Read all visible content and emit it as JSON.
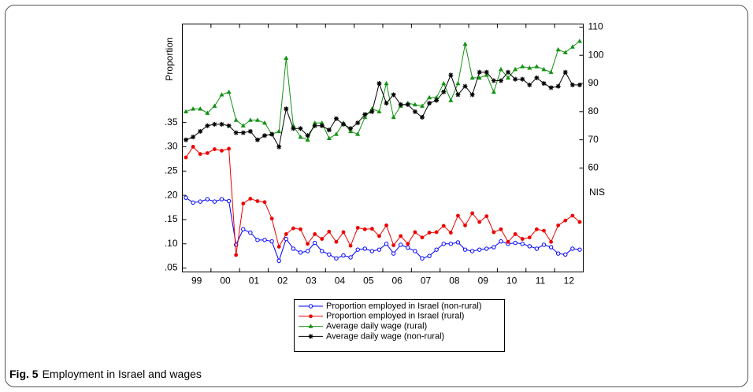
{
  "chart_data": {
    "type": "line",
    "ylabel": "Proportion",
    "y2label": "NIS",
    "caption_label": "Fig. 5",
    "caption": "Employment in Israel and wages",
    "categories": [
      null,
      "99",
      null,
      null,
      null,
      "00",
      null,
      null,
      null,
      "01",
      null,
      null,
      null,
      "02",
      null,
      null,
      null,
      "03",
      null,
      null,
      null,
      "04",
      null,
      null,
      null,
      "05",
      null,
      null,
      null,
      "06",
      null,
      null,
      null,
      "07",
      null,
      null,
      null,
      "08",
      null,
      null,
      null,
      "09",
      null,
      null,
      null,
      "10",
      null,
      null,
      null,
      "11",
      null,
      null,
      null,
      "12",
      null,
      null
    ],
    "ylim": [
      0.042,
      0.553
    ],
    "yticks": [
      {
        "value": 0.05,
        "label": ".05"
      },
      {
        "value": 0.1,
        "label": ".10"
      },
      {
        "value": 0.15,
        "label": ".15"
      },
      {
        "value": 0.2,
        "label": ".20"
      },
      {
        "value": 0.25,
        "label": ".25"
      },
      {
        "value": 0.3,
        "label": ".30"
      },
      {
        "value": 0.35,
        "label": ".35"
      }
    ],
    "y2lim": [
      23.1,
      111.1
    ],
    "y2ticks": [
      60,
      70,
      80,
      90,
      100,
      110
    ],
    "grid": false,
    "series": [
      {
        "name": "Proportion employed in Israel (non-rural)",
        "color": "#0000ff",
        "marker": "open-circle",
        "values": [
          0.195,
          0.185,
          0.187,
          0.192,
          0.187,
          0.192,
          0.188,
          0.098,
          0.13,
          0.123,
          0.108,
          0.108,
          0.105,
          0.065,
          0.11,
          0.09,
          0.082,
          0.085,
          0.102,
          0.085,
          0.078,
          0.07,
          0.076,
          0.072,
          0.088,
          0.09,
          0.085,
          0.088,
          0.1,
          0.08,
          0.098,
          0.092,
          0.085,
          0.07,
          0.075,
          0.088,
          0.1,
          0.1,
          0.103,
          0.088,
          0.085,
          0.088,
          0.09,
          0.093,
          0.105,
          0.1,
          0.102,
          0.1,
          0.095,
          0.09,
          0.098,
          0.093,
          0.08,
          0.078,
          0.09,
          0.088
        ]
      },
      {
        "name": "Proportion employed in Israel (rural)",
        "color": "#ee0000",
        "marker": "circle",
        "values": [
          0.278,
          0.3,
          0.285,
          0.287,
          0.295,
          0.292,
          0.296,
          0.077,
          0.183,
          0.193,
          0.188,
          0.186,
          0.152,
          0.094,
          0.12,
          0.132,
          0.13,
          0.1,
          0.12,
          0.11,
          0.125,
          0.104,
          0.124,
          0.096,
          0.133,
          0.13,
          0.131,
          0.116,
          0.138,
          0.097,
          0.116,
          0.1,
          0.124,
          0.113,
          0.123,
          0.124,
          0.137,
          0.123,
          0.158,
          0.138,
          0.163,
          0.145,
          0.157,
          0.124,
          0.13,
          0.104,
          0.12,
          0.11,
          0.113,
          0.13,
          0.127,
          0.104,
          0.138,
          0.148,
          0.158,
          0.145
        ]
      },
      {
        "name": "Average daily wage (rural)",
        "color": "#139213",
        "marker": "triangle",
        "axis": "y2",
        "values": [
          80,
          81,
          81,
          79.5,
          82,
          86,
          87,
          77,
          75,
          77,
          77,
          76,
          72,
          73,
          99,
          75,
          71,
          70,
          76,
          76,
          70.5,
          72,
          76,
          73,
          72,
          78,
          81,
          80,
          90,
          78,
          82,
          83,
          82.5,
          82,
          85,
          85,
          90,
          84,
          90,
          104,
          92,
          92,
          93,
          87,
          95,
          92,
          95,
          96,
          95.5,
          96,
          95,
          94,
          102,
          101,
          103,
          105
        ]
      },
      {
        "name": "Average daily wage (non-rural)",
        "color": "#000000",
        "marker": "star",
        "axis": "y2",
        "values": [
          70,
          71,
          73,
          75,
          75.5,
          75.5,
          75,
          72.5,
          72.5,
          73,
          70,
          71.5,
          72,
          67.5,
          81,
          74,
          74,
          71.5,
          75,
          75,
          73.5,
          77.5,
          75.5,
          74,
          76,
          79,
          80,
          90,
          83,
          86,
          82.5,
          82.5,
          80,
          78,
          83,
          84,
          87,
          93,
          86,
          89,
          86,
          94,
          94,
          91,
          91,
          94,
          91.5,
          91.5,
          89.5,
          92,
          90,
          88.5,
          89,
          94,
          89.5,
          89.5
        ]
      }
    ]
  }
}
